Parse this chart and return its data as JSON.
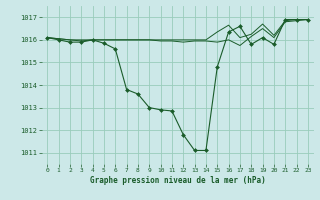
{
  "title": "Graphe pression niveau de la mer (hPa)",
  "background_color": "#cce8e8",
  "grid_color": "#99ccbb",
  "line_color": "#1a5c2a",
  "marker_color": "#1a5c2a",
  "xlim": [
    -0.5,
    23.5
  ],
  "ylim": [
    1010.5,
    1017.5
  ],
  "yticks": [
    1011,
    1012,
    1013,
    1014,
    1015,
    1016,
    1017
  ],
  "xticks": [
    0,
    1,
    2,
    3,
    4,
    5,
    6,
    7,
    8,
    9,
    10,
    11,
    12,
    13,
    14,
    15,
    16,
    17,
    18,
    19,
    20,
    21,
    22,
    23
  ],
  "series_main_x": [
    0,
    1,
    2,
    3,
    4,
    5,
    6,
    7,
    8,
    9,
    10,
    11,
    12,
    13,
    14,
    15,
    16,
    17,
    18,
    19,
    20,
    21,
    22,
    23
  ],
  "series_main_y": [
    1016.1,
    1016.0,
    1015.9,
    1015.9,
    1016.0,
    1015.85,
    1015.6,
    1013.8,
    1013.6,
    1013.0,
    1012.9,
    1012.85,
    1011.8,
    1011.1,
    1011.1,
    1014.8,
    1016.35,
    1016.6,
    1015.8,
    1016.1,
    1015.8,
    1016.9,
    1016.9,
    1016.9
  ],
  "series_flat_x": [
    0,
    1,
    2,
    3,
    4,
    5,
    6,
    7,
    8,
    9,
    10,
    11,
    12,
    13,
    14,
    15,
    16,
    17,
    18,
    19,
    20,
    21,
    22,
    23
  ],
  "series_flat_y": [
    1016.1,
    1016.05,
    1016.0,
    1015.95,
    1016.0,
    1016.0,
    1016.0,
    1016.0,
    1016.0,
    1016.0,
    1015.95,
    1015.95,
    1015.9,
    1015.95,
    1015.95,
    1015.9,
    1016.0,
    1015.75,
    1016.15,
    1016.5,
    1016.1,
    1016.8,
    1016.85,
    1016.9
  ],
  "series_upper_x": [
    0,
    1,
    2,
    3,
    4,
    5,
    6,
    7,
    8,
    9,
    10,
    11,
    12,
    13,
    14,
    15,
    16,
    17,
    18,
    19,
    20,
    21,
    22,
    23
  ],
  "series_upper_y": [
    1016.1,
    1016.05,
    1016.0,
    1016.0,
    1016.0,
    1016.0,
    1016.0,
    1016.0,
    1016.0,
    1016.0,
    1016.0,
    1016.0,
    1016.0,
    1016.0,
    1016.0,
    1016.35,
    1016.65,
    1016.1,
    1016.25,
    1016.7,
    1016.2,
    1016.85,
    1016.9,
    1016.9
  ]
}
